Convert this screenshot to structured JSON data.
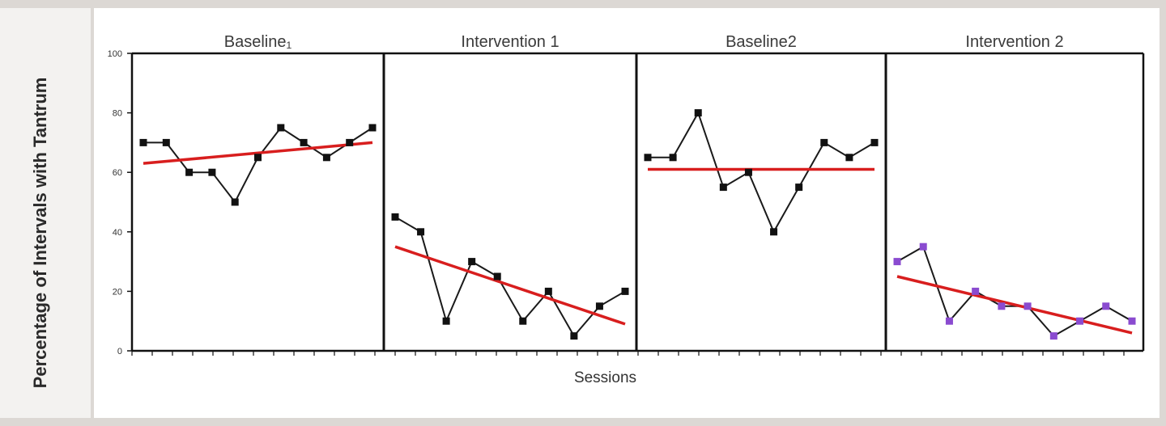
{
  "chart_data": {
    "type": "line",
    "ylabel": "Percentage of Intervals with Tantrum",
    "xlabel": "Sessions",
    "ylim": [
      0,
      100
    ],
    "yticks": [
      "0",
      "20",
      "40",
      "60",
      "80",
      "100"
    ],
    "grid": false,
    "colors": {
      "data_line": "#1a1a1a",
      "trend_line": "#d81e1e",
      "intervention2_marker": "#8a4bd0"
    },
    "phases": [
      {
        "title": "Baseline₁",
        "values": [
          70,
          70,
          60,
          60,
          50,
          65,
          75,
          70,
          65,
          70,
          75
        ],
        "trend": [
          63,
          70
        ],
        "marker_color": "#111111"
      },
      {
        "title": "Intervention 1",
        "values": [
          45,
          40,
          10,
          30,
          25,
          10,
          20,
          5,
          15,
          20
        ],
        "trend": [
          35,
          9
        ],
        "marker_color": "#111111"
      },
      {
        "title": "Baseline2",
        "values": [
          65,
          65,
          80,
          55,
          60,
          40,
          55,
          70,
          65,
          70
        ],
        "trend": [
          61,
          61
        ],
        "marker_color": "#111111"
      },
      {
        "title": "Intervention 2",
        "values": [
          30,
          35,
          10,
          20,
          15,
          15,
          5,
          10,
          15,
          10
        ],
        "trend": [
          25,
          6
        ],
        "marker_color": "#8a4bd0"
      }
    ]
  }
}
